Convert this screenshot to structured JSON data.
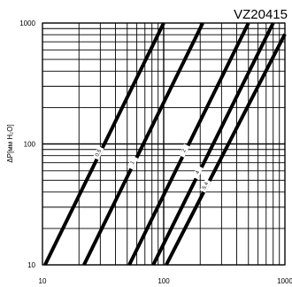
{
  "chart_data": {
    "type": "line",
    "title": "VZ20415",
    "xlabel": "",
    "ylabel": "ΔP[мм H₂O]",
    "x_scale": "log",
    "y_scale": "log",
    "xlim": [
      10,
      1000
    ],
    "ylim": [
      10,
      1000
    ],
    "grid": true,
    "x_ticks": [
      "10",
      "100",
      "1000"
    ],
    "y_ticks": [
      "10",
      "100",
      "1000"
    ],
    "series": [
      {
        "name": "0.5",
        "x": [
          10.5,
          100
        ],
        "y": [
          10,
          1000
        ]
      },
      {
        "name": "1",
        "x": [
          22,
          210
        ],
        "y": [
          10,
          1000
        ]
      },
      {
        "name": "2",
        "x": [
          52,
          500
        ],
        "y": [
          10,
          1000
        ]
      },
      {
        "name": "4",
        "x": [
          82,
          800
        ],
        "y": [
          10,
          1000
        ]
      },
      {
        "name": "5.4",
        "x": [
          105,
          1000
        ],
        "y": [
          10,
          810
        ]
      }
    ]
  }
}
